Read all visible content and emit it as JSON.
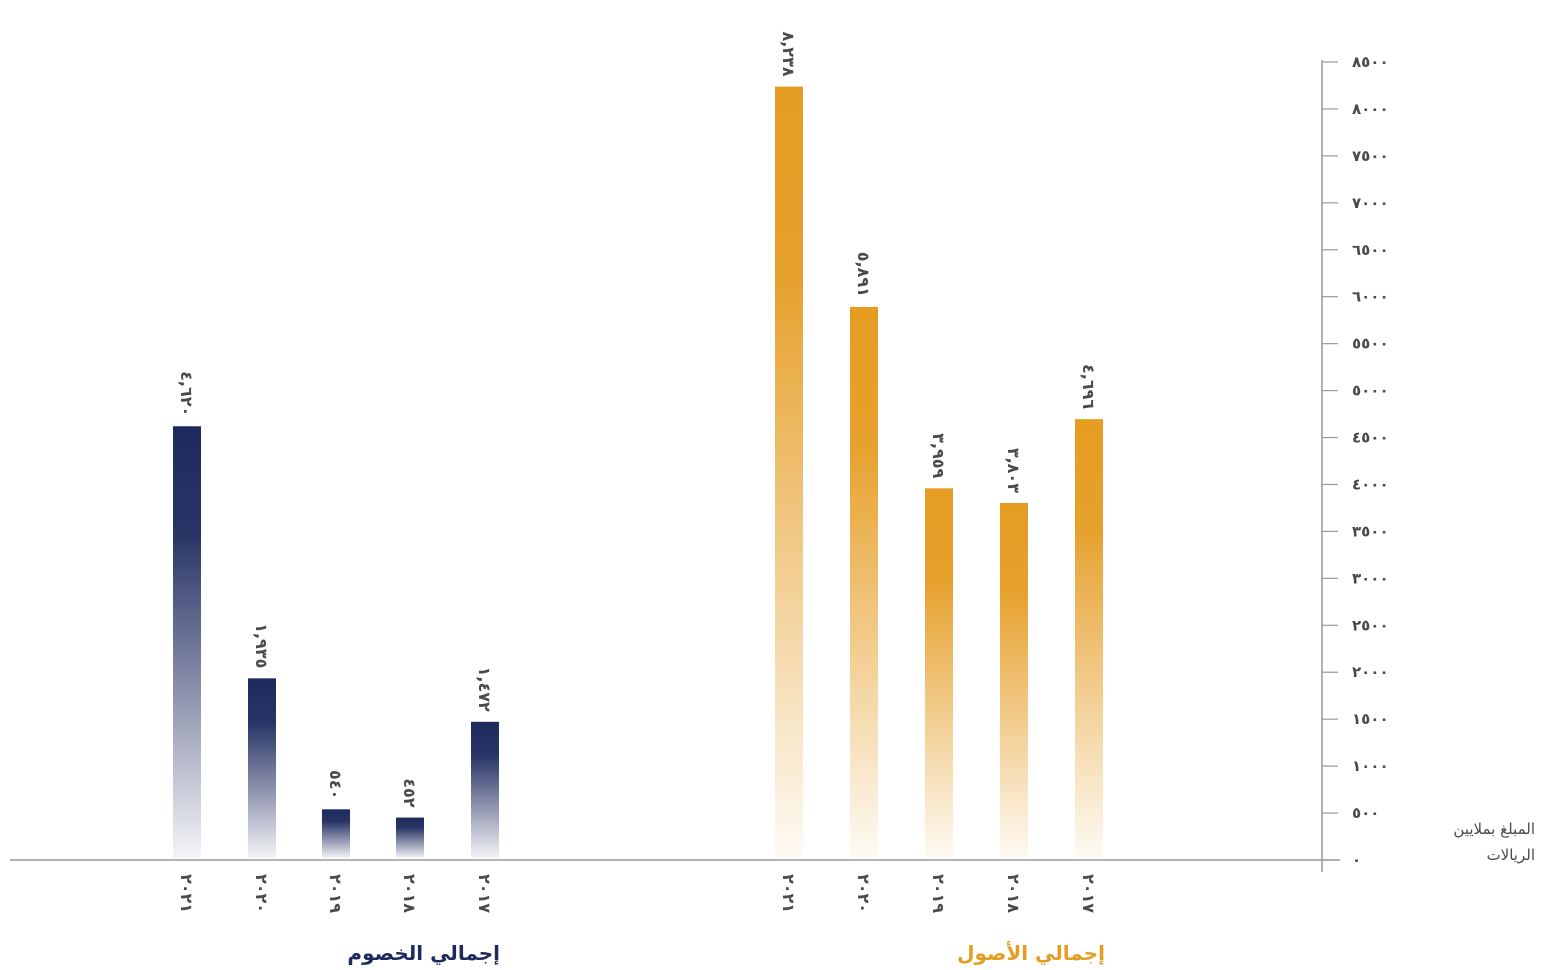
{
  "chart_data": {
    "type": "bar",
    "ylabel_lines": [
      "المبلغ بملايين",
      "الريالات"
    ],
    "ylim": [
      0,
      8500
    ],
    "yticks": [
      {
        "value": 0,
        "label": "٠"
      },
      {
        "value": 500,
        "label": "٥٠٠"
      },
      {
        "value": 1000,
        "label": "١٠٠٠"
      },
      {
        "value": 1500,
        "label": "١٥٠٠"
      },
      {
        "value": 2000,
        "label": "٢٠٠٠"
      },
      {
        "value": 2500,
        "label": "٢٥٠٠"
      },
      {
        "value": 3000,
        "label": "٣٠٠٠"
      },
      {
        "value": 3500,
        "label": "٣٥٠٠"
      },
      {
        "value": 4000,
        "label": "٤٠٠٠"
      },
      {
        "value": 4500,
        "label": "٤٥٠٠"
      },
      {
        "value": 5000,
        "label": "٥٠٠٠"
      },
      {
        "value": 5500,
        "label": "٥٥٠٠"
      },
      {
        "value": 6000,
        "label": "٦٠٠٠"
      },
      {
        "value": 6500,
        "label": "٦٥٠٠"
      },
      {
        "value": 7000,
        "label": "٧٠٠٠"
      },
      {
        "value": 7500,
        "label": "٧٥٠٠"
      },
      {
        "value": 8000,
        "label": "٨٠٠٠"
      },
      {
        "value": 8500,
        "label": "٨٥٠٠"
      }
    ],
    "categories": [
      "٢٠١٧",
      "٢٠١٨",
      "٢٠١٩",
      "٢٠٢٠",
      "٢٠٢١"
    ],
    "series": [
      {
        "name": "إجمالي الأصول",
        "color": "#e59c22",
        "values": [
          4696,
          3803,
          3959,
          5891,
          8238
        ],
        "value_labels": [
          "٤,٦٩٦",
          "٣,٨٠٣",
          "٣,٩٥٩",
          "٥,٨٩١",
          "٨,٢٣٨"
        ]
      },
      {
        "name": "إجمالي الخصوم",
        "color": "#1e2a5e",
        "values": [
          1472,
          452,
          540,
          1935,
          4620
        ],
        "value_labels": [
          "١,٤٧٢",
          "٤٥٢",
          "٥٤٠",
          "١,٩٣٥",
          "٤,٦٢٠"
        ]
      }
    ],
    "grid": false,
    "axis_color": "#9a9a9a"
  }
}
